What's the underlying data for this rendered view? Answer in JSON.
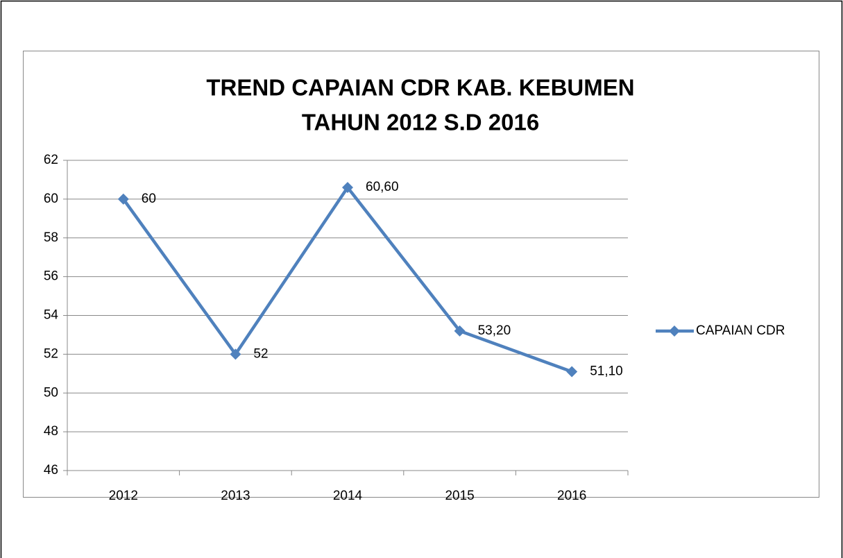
{
  "chart_data": {
    "type": "line",
    "title": [
      "TREND CAPAIAN CDR KAB. KEBUMEN",
      "TAHUN 2012 S.D 2016"
    ],
    "categories": [
      "2012",
      "2013",
      "2014",
      "2015",
      "2016"
    ],
    "series": [
      {
        "name": "CAPAIAN CDR",
        "color": "#4f81bd",
        "values": [
          60,
          52,
          60.6,
          53.2,
          51.1
        ],
        "value_labels": [
          "60",
          "52",
          "60,60",
          "53,20",
          "51,10"
        ]
      }
    ],
    "ylim": [
      46,
      62
    ],
    "yticks": [
      46,
      48,
      50,
      52,
      54,
      56,
      58,
      60,
      62
    ],
    "grid": true,
    "legend": "right"
  }
}
